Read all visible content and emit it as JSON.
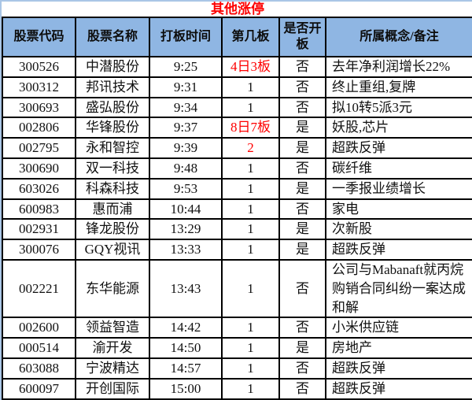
{
  "title": "其他涨停",
  "colors": {
    "title_text": "#fe0000",
    "header_bg": "#8fb6e3",
    "highlight_text": "#fe0000",
    "grid_border": "#000000",
    "page_edge": "#aac6e6"
  },
  "columns": {
    "code": {
      "label": "股票代码"
    },
    "name": {
      "label": "股票名称"
    },
    "time": {
      "label": "打板时间"
    },
    "board": {
      "label": "第几板"
    },
    "opened": {
      "label": "是否开板"
    },
    "concept": {
      "label": "所属概念/备注"
    }
  },
  "rows": [
    {
      "code": "300526",
      "name": "中潜股份",
      "time": "9:25",
      "board": "4日3板",
      "board_red": true,
      "opened": "否",
      "concept": "去年净利润增长22%"
    },
    {
      "code": "300312",
      "name": "邦讯技术",
      "time": "9:31",
      "board": "1",
      "board_red": false,
      "opened": "否",
      "concept": "终止重组,复牌"
    },
    {
      "code": "300693",
      "name": "盛弘股份",
      "time": "9:34",
      "board": "1",
      "board_red": false,
      "opened": "否",
      "concept": "拟10转5派3元"
    },
    {
      "code": "002806",
      "name": "华锋股份",
      "time": "9:37",
      "board": "8日7板",
      "board_red": true,
      "opened": "是",
      "concept": "妖股,芯片"
    },
    {
      "code": "002795",
      "name": "永和智控",
      "time": "9:39",
      "board": "2",
      "board_red": true,
      "opened": "是",
      "concept": "超跌反弹"
    },
    {
      "code": "300690",
      "name": "双一科技",
      "time": "9:48",
      "board": "1",
      "board_red": false,
      "opened": "否",
      "concept": "碳纤维"
    },
    {
      "code": "603026",
      "name": "科森科技",
      "time": "9:53",
      "board": "1",
      "board_red": false,
      "opened": "是",
      "concept": "一季报业绩增长"
    },
    {
      "code": "600983",
      "name": "惠而浦",
      "time": "10:44",
      "board": "1",
      "board_red": false,
      "opened": "否",
      "concept": "家电"
    },
    {
      "code": "002931",
      "name": "锋龙股份",
      "time": "13:29",
      "board": "1",
      "board_red": false,
      "opened": "是",
      "concept": "次新股"
    },
    {
      "code": "300076",
      "name": "GQY视讯",
      "time": "13:33",
      "board": "1",
      "board_red": false,
      "opened": "是",
      "concept": "超跌反弹"
    },
    {
      "code": "002221",
      "name": "东华能源",
      "time": "13:43",
      "board": "1",
      "board_red": false,
      "opened": "否",
      "concept": "公司与Mabanaft就丙烷购销合同纠纷一案达成和解"
    },
    {
      "code": "002600",
      "name": "领益智造",
      "time": "14:42",
      "board": "1",
      "board_red": false,
      "opened": "否",
      "concept": "小米供应链"
    },
    {
      "code": "000514",
      "name": "渝开发",
      "time": "14:50",
      "board": "1",
      "board_red": false,
      "opened": "是",
      "concept": "房地产"
    },
    {
      "code": "603088",
      "name": "宁波精达",
      "time": "14:57",
      "board": "1",
      "board_red": false,
      "opened": "否",
      "concept": "超跌反弹"
    },
    {
      "code": "600097",
      "name": "开创国际",
      "time": "15:00",
      "board": "1",
      "board_red": false,
      "opened": "否",
      "concept": "超跌反弹"
    }
  ]
}
